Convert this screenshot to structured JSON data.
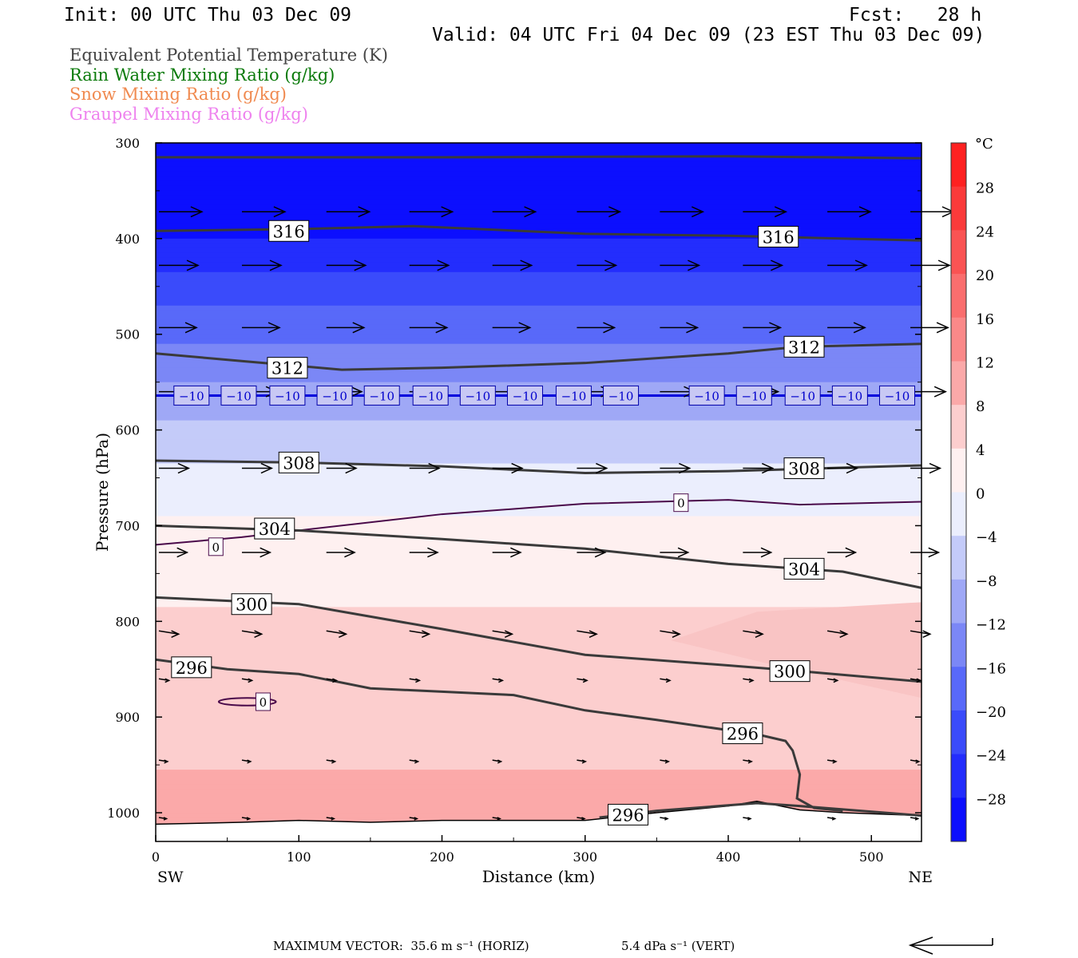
{
  "header": {
    "init": "Init: 00 UTC Thu 03 Dec 09",
    "fcst": "Fcst:   28 h",
    "valid": "Valid: 04 UTC Fri 04 Dec 09 (23 EST Thu 03 Dec 09)"
  },
  "legend": [
    {
      "label": "Equivalent Potential Temperature (K)",
      "color": "#444444"
    },
    {
      "label": "Rain Water Mixing Ratio (g/kg)",
      "color": "#0a7a0a"
    },
    {
      "label": "Snow Mixing Ratio (g/kg)",
      "color": "#f08a50"
    },
    {
      "label": "Graupel Mixing Ratio (g/kg)",
      "color": "#ee82ee"
    }
  ],
  "chart_data": {
    "type": "cross-section",
    "xlabel": "Distance (km)",
    "ylabel": "Pressure (hPa)",
    "x_range": [
      0,
      535
    ],
    "y_range": [
      300,
      1030
    ],
    "x_ticks": [
      0,
      100,
      200,
      300,
      400,
      500
    ],
    "y_ticks": [
      300,
      400,
      500,
      600,
      700,
      800,
      900,
      1000
    ],
    "x_tick_labels": [
      "0",
      "100",
      "200",
      "300",
      "400",
      "500"
    ],
    "y_tick_labels": [
      "300",
      "400",
      "500",
      "600",
      "700",
      "800",
      "900",
      "1000"
    ],
    "left_end_label": "SW",
    "right_end_label": "NE",
    "colorbar": {
      "unit": "°C",
      "ticks": [
        28,
        24,
        20,
        16,
        12,
        8,
        4,
        0,
        -4,
        -8,
        -12,
        -16,
        -20,
        -24,
        -28
      ],
      "tick_labels": [
        "28",
        "24",
        "20",
        "16",
        "12",
        "8",
        "4",
        "0",
        "−4",
        "−8",
        "−12",
        "−16",
        "−20",
        "−24",
        "−28"
      ],
      "range": [
        -32,
        32
      ]
    },
    "temperature_bands_by_pressure": [
      {
        "p": 300,
        "t": -32
      },
      {
        "p": 400,
        "t": -28
      },
      {
        "p": 450,
        "t": -22
      },
      {
        "p": 500,
        "t": -17
      },
      {
        "p": 550,
        "t": -12
      },
      {
        "p": 600,
        "t": -7
      },
      {
        "p": 650,
        "t": -3
      },
      {
        "p": 690,
        "t": 0
      },
      {
        "p": 750,
        "t": 3
      },
      {
        "p": 820,
        "t": 5
      },
      {
        "p": 900,
        "t": 6
      },
      {
        "p": 980,
        "t": 9
      }
    ],
    "theta_e_contours": [
      {
        "label": "316",
        "points": [
          [
            0,
            315
          ],
          [
            200,
            315
          ],
          [
            400,
            314
          ],
          [
            535,
            316
          ]
        ]
      },
      {
        "label": "316",
        "points": [
          [
            0,
            392
          ],
          [
            100,
            390
          ],
          [
            180,
            387
          ],
          [
            300,
            395
          ],
          [
            400,
            397
          ],
          [
            535,
            402
          ]
        ]
      },
      {
        "label": "312",
        "points": [
          [
            0,
            520
          ],
          [
            60,
            528
          ],
          [
            130,
            537
          ],
          [
            200,
            535
          ],
          [
            300,
            530
          ],
          [
            400,
            520
          ],
          [
            450,
            513
          ],
          [
            535,
            510
          ]
        ]
      },
      {
        "label": "308",
        "points": [
          [
            0,
            632
          ],
          [
            100,
            634
          ],
          [
            200,
            638
          ],
          [
            300,
            645
          ],
          [
            400,
            643
          ],
          [
            535,
            637
          ]
        ]
      },
      {
        "label": "304",
        "points": [
          [
            0,
            700
          ],
          [
            100,
            705
          ],
          [
            200,
            714
          ],
          [
            300,
            724
          ],
          [
            400,
            740
          ],
          [
            480,
            748
          ],
          [
            535,
            765
          ]
        ]
      },
      {
        "label": "300",
        "points": [
          [
            0,
            775
          ],
          [
            100,
            782
          ],
          [
            200,
            808
          ],
          [
            300,
            835
          ],
          [
            400,
            846
          ],
          [
            450,
            852
          ],
          [
            535,
            863
          ]
        ]
      },
      {
        "label": "296",
        "points": [
          [
            0,
            840
          ],
          [
            50,
            850
          ],
          [
            100,
            855
          ],
          [
            150,
            870
          ],
          [
            250,
            877
          ],
          [
            300,
            893
          ],
          [
            350,
            903
          ],
          [
            420,
            918
          ],
          [
            440,
            925
          ],
          [
            445,
            935
          ],
          [
            450,
            960
          ],
          [
            448,
            985
          ],
          [
            460,
            995
          ],
          [
            480,
            998
          ]
        ]
      },
      {
        "label": "296",
        "points": [
          [
            310,
            1005
          ],
          [
            350,
            998
          ],
          [
            420,
            990
          ],
          [
            450,
            993
          ],
          [
            535,
            1003
          ]
        ]
      }
    ],
    "theta_e_label_positions": [
      {
        "label": "316",
        "x": 93,
        "p": 392
      },
      {
        "label": "316",
        "x": 435,
        "p": 398
      },
      {
        "label": "312",
        "x": 92,
        "p": 535
      },
      {
        "label": "312",
        "x": 453,
        "p": 513
      },
      {
        "label": "308",
        "x": 100,
        "p": 634
      },
      {
        "label": "308",
        "x": 453,
        "p": 640
      },
      {
        "label": "304",
        "x": 83,
        "p": 703
      },
      {
        "label": "304",
        "x": 453,
        "p": 745
      },
      {
        "label": "300",
        "x": 67,
        "p": 782
      },
      {
        "label": "300",
        "x": 443,
        "p": 852
      },
      {
        "label": "296",
        "x": 25,
        "p": 848
      },
      {
        "label": "296",
        "x": 410,
        "p": 917
      },
      {
        "label": "296",
        "x": 330,
        "p": 1002
      }
    ],
    "minus10_isotherm": {
      "label": "−10",
      "p": 564,
      "label_x": [
        25,
        58,
        92,
        125,
        158,
        192,
        225,
        258,
        292,
        325,
        385,
        418,
        452,
        485,
        518
      ]
    },
    "zero_isotherm": {
      "label": "0",
      "points": [
        [
          0,
          720
        ],
        [
          60,
          712
        ],
        [
          100,
          705
        ],
        [
          200,
          688
        ],
        [
          300,
          677
        ],
        [
          400,
          673
        ],
        [
          450,
          678
        ],
        [
          535,
          675
        ]
      ],
      "label_positions": [
        {
          "x": 42,
          "p": 722
        },
        {
          "x": 367,
          "p": 676
        },
        {
          "x": 75,
          "p": 884
        }
      ]
    },
    "zero_loop": {
      "cx": 64,
      "p": 884,
      "dx": 20,
      "dp": 4
    },
    "terrain_pressure": [
      [
        0,
        1012
      ],
      [
        60,
        1010
      ],
      [
        100,
        1008
      ],
      [
        150,
        1010
      ],
      [
        200,
        1008
      ],
      [
        250,
        1008
      ],
      [
        300,
        1008
      ],
      [
        350,
        1000
      ],
      [
        400,
        993
      ],
      [
        420,
        988
      ],
      [
        450,
        997
      ],
      [
        480,
        1000
      ],
      [
        535,
        1003
      ]
    ],
    "wind_rows": [
      {
        "p": 372,
        "dx": 0.98,
        "dp": 0,
        "len": 55,
        "x": [
          0,
          58,
          117,
          175,
          233,
          292,
          350,
          408,
          467,
          525
        ]
      },
      {
        "p": 428,
        "dx": 0.98,
        "dp": 0,
        "len": 50,
        "x": [
          0,
          58,
          117,
          175,
          233,
          292,
          350,
          408,
          467,
          525
        ]
      },
      {
        "p": 493,
        "dx": 0.98,
        "dp": 0,
        "len": 48,
        "x": [
          0,
          58,
          117,
          175,
          233,
          292,
          350,
          408,
          467,
          525
        ]
      },
      {
        "p": 560,
        "dx": 0.98,
        "dp": 0,
        "len": 45,
        "x": [
          0,
          58,
          117,
          175,
          233,
          292,
          350,
          408,
          467,
          525
        ]
      },
      {
        "p": 640,
        "dx": 0.98,
        "dp": 0,
        "len": 38,
        "x": [
          0,
          58,
          117,
          175,
          233,
          292,
          350,
          408,
          467,
          525
        ]
      },
      {
        "p": 728,
        "dx": 0.98,
        "dp": 0,
        "len": 36,
        "x": [
          0,
          58,
          117,
          175,
          233,
          292,
          350,
          408,
          467,
          525
        ]
      },
      {
        "p": 810,
        "dx": 0.95,
        "dp": 1,
        "len": 26,
        "x": [
          0,
          58,
          117,
          175,
          233,
          292,
          350,
          408,
          467,
          525
        ]
      },
      {
        "p": 860,
        "dx": 0.9,
        "dp": 1,
        "len": 14,
        "x": [
          0,
          58,
          117,
          175,
          233,
          292,
          350,
          408,
          467,
          525
        ]
      },
      {
        "p": 945,
        "dx": 0.9,
        "dp": 1,
        "len": 12,
        "x": [
          0,
          58,
          117,
          175,
          233,
          292,
          350,
          408,
          467,
          525
        ]
      },
      {
        "p": 1005,
        "dx": 0.95,
        "dp": 1,
        "len": 10,
        "x": [
          0,
          58,
          117,
          175,
          233,
          292,
          350,
          408,
          467,
          525
        ]
      }
    ]
  },
  "footer": {
    "max_vector": "MAXIMUM VECTOR:  35.6 m s⁻¹ (HORIZ)",
    "vert": "5.4 dPa s⁻¹ (VERT)"
  }
}
